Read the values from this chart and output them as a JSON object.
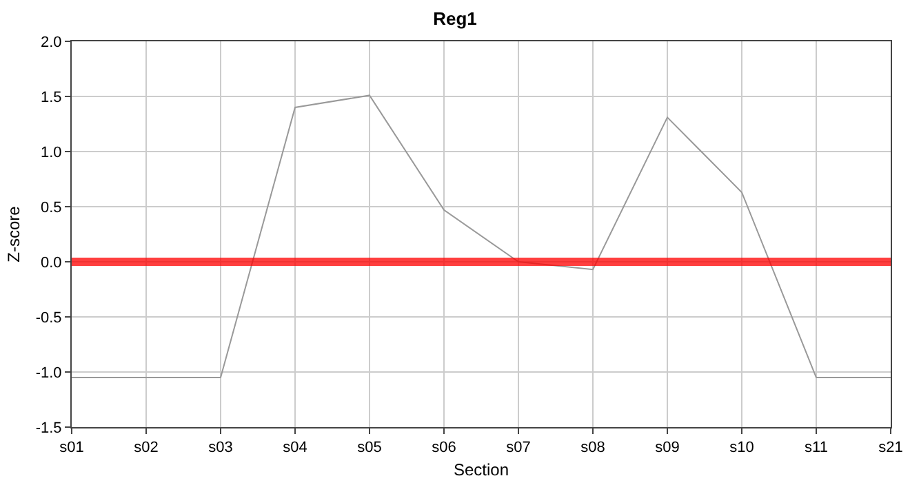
{
  "chart_data": {
    "type": "line",
    "title": "Reg1",
    "xlabel": "Section",
    "ylabel": "Z-score",
    "categories": [
      "s01",
      "s02",
      "s03",
      "s04",
      "s05",
      "s06",
      "s07",
      "s08",
      "s09",
      "s10",
      "s11",
      "s21"
    ],
    "series": [
      {
        "color": "#999999",
        "values": [
          -1.05,
          -1.05,
          -1.05,
          1.4,
          1.51,
          0.47,
          0.0,
          -0.07,
          1.31,
          0.63,
          -1.05,
          -1.05
        ]
      }
    ],
    "ylim": [
      -1.5,
      2.0
    ],
    "yticks": [
      {
        "value": -1.5,
        "label": "-1.5"
      },
      {
        "value": -1,
        "label": "-1.0"
      },
      {
        "value": -0.5,
        "label": "-0.5"
      },
      {
        "value": 0,
        "label": "0.0"
      },
      0.5,
      {
        "value": 1,
        "label": "1.0"
      },
      1.5,
      {
        "value": 2,
        "label": "2.0"
      }
    ],
    "ref_lines": [
      {
        "axis": "y",
        "value": 0,
        "color": "#ff0000"
      }
    ],
    "grid": true,
    "marker": "none",
    "line_style": "solid"
  }
}
